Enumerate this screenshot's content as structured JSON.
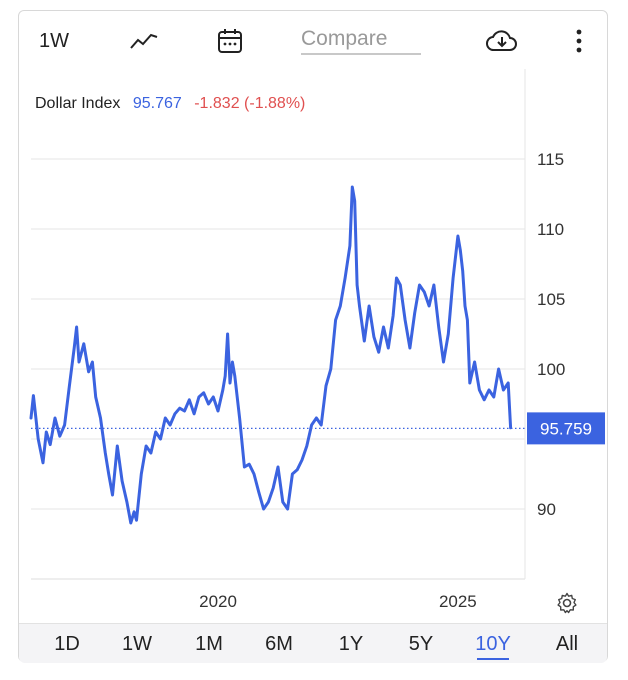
{
  "toolbar": {
    "interval_label": "1W",
    "trend_icon": "line-chart-icon",
    "calendar_icon": "calendar-icon",
    "compare_placeholder": "Compare",
    "download_icon": "cloud-download-icon",
    "more_icon": "more-vertical-icon"
  },
  "header": {
    "name": "Dollar Index",
    "value": "95.767",
    "change": "-1.832 (-1.88%)"
  },
  "price_tag": "95.759",
  "ranges": [
    "1D",
    "1W",
    "1M",
    "6M",
    "1Y",
    "5Y",
    "10Y",
    "All"
  ],
  "active_range": "10Y",
  "colors": {
    "line": "#3b63e0",
    "negative": "#e05050",
    "tag": "#3b63e0"
  },
  "chart_data": {
    "type": "line",
    "title": "",
    "xlabel": "",
    "ylabel": "",
    "x_ticks": [
      {
        "label": "2020",
        "x": 2020.0
      },
      {
        "label": "2025",
        "x": 2025.0
      }
    ],
    "y_ticks": [
      90,
      95,
      100,
      105,
      110,
      115
    ],
    "y_tick_labels": [
      "90",
      "100",
      "105",
      "110",
      "115"
    ],
    "xlim": [
      2016.1,
      2026.4
    ],
    "ylim": [
      85,
      117
    ],
    "reference_value": 95.759,
    "grid": true,
    "series": [
      {
        "name": "Dollar Index",
        "points": [
          [
            2016.1,
            96.5
          ],
          [
            2016.15,
            98.1
          ],
          [
            2016.25,
            95.0
          ],
          [
            2016.35,
            93.3
          ],
          [
            2016.42,
            95.5
          ],
          [
            2016.5,
            94.6
          ],
          [
            2016.6,
            96.5
          ],
          [
            2016.7,
            95.2
          ],
          [
            2016.8,
            96.0
          ],
          [
            2016.9,
            98.8
          ],
          [
            2017.0,
            101.5
          ],
          [
            2017.05,
            103.0
          ],
          [
            2017.1,
            100.5
          ],
          [
            2017.2,
            101.8
          ],
          [
            2017.3,
            99.8
          ],
          [
            2017.38,
            100.5
          ],
          [
            2017.45,
            98.0
          ],
          [
            2017.55,
            96.5
          ],
          [
            2017.65,
            94.0
          ],
          [
            2017.72,
            92.5
          ],
          [
            2017.8,
            91.0
          ],
          [
            2017.9,
            94.5
          ],
          [
            2018.0,
            92.0
          ],
          [
            2018.1,
            90.5
          ],
          [
            2018.18,
            89.0
          ],
          [
            2018.25,
            89.8
          ],
          [
            2018.3,
            89.2
          ],
          [
            2018.4,
            92.5
          ],
          [
            2018.5,
            94.5
          ],
          [
            2018.6,
            94.0
          ],
          [
            2018.7,
            95.5
          ],
          [
            2018.8,
            95.0
          ],
          [
            2018.9,
            96.5
          ],
          [
            2019.0,
            96.0
          ],
          [
            2019.1,
            96.8
          ],
          [
            2019.2,
            97.2
          ],
          [
            2019.3,
            97.0
          ],
          [
            2019.4,
            97.8
          ],
          [
            2019.5,
            96.8
          ],
          [
            2019.6,
            98.0
          ],
          [
            2019.7,
            98.3
          ],
          [
            2019.8,
            97.5
          ],
          [
            2019.9,
            98.0
          ],
          [
            2020.0,
            97.0
          ],
          [
            2020.1,
            98.5
          ],
          [
            2020.15,
            99.5
          ],
          [
            2020.2,
            102.5
          ],
          [
            2020.25,
            99.0
          ],
          [
            2020.3,
            100.5
          ],
          [
            2020.35,
            99.5
          ],
          [
            2020.45,
            96.5
          ],
          [
            2020.55,
            93.0
          ],
          [
            2020.65,
            93.2
          ],
          [
            2020.75,
            92.5
          ],
          [
            2020.85,
            91.2
          ],
          [
            2020.95,
            90.0
          ],
          [
            2021.05,
            90.5
          ],
          [
            2021.15,
            91.5
          ],
          [
            2021.25,
            93.0
          ],
          [
            2021.35,
            90.5
          ],
          [
            2021.45,
            90.0
          ],
          [
            2021.55,
            92.5
          ],
          [
            2021.65,
            92.8
          ],
          [
            2021.75,
            93.5
          ],
          [
            2021.85,
            94.5
          ],
          [
            2021.95,
            96.0
          ],
          [
            2022.05,
            96.5
          ],
          [
            2022.15,
            96.0
          ],
          [
            2022.25,
            98.8
          ],
          [
            2022.35,
            100.0
          ],
          [
            2022.45,
            103.5
          ],
          [
            2022.55,
            104.5
          ],
          [
            2022.65,
            106.5
          ],
          [
            2022.75,
            108.8
          ],
          [
            2022.8,
            113.0
          ],
          [
            2022.85,
            112.0
          ],
          [
            2022.9,
            106.0
          ],
          [
            2022.95,
            104.5
          ],
          [
            2023.05,
            102.0
          ],
          [
            2023.15,
            104.5
          ],
          [
            2023.25,
            102.3
          ],
          [
            2023.35,
            101.2
          ],
          [
            2023.45,
            103.0
          ],
          [
            2023.55,
            101.5
          ],
          [
            2023.65,
            103.8
          ],
          [
            2023.72,
            106.5
          ],
          [
            2023.8,
            106.0
          ],
          [
            2023.9,
            103.5
          ],
          [
            2024.0,
            101.5
          ],
          [
            2024.1,
            104.0
          ],
          [
            2024.2,
            106.0
          ],
          [
            2024.3,
            105.5
          ],
          [
            2024.4,
            104.5
          ],
          [
            2024.5,
            106.0
          ],
          [
            2024.6,
            103.0
          ],
          [
            2024.7,
            100.5
          ],
          [
            2024.8,
            102.5
          ],
          [
            2024.9,
            106.5
          ],
          [
            2025.0,
            109.5
          ],
          [
            2025.05,
            108.5
          ],
          [
            2025.1,
            107.0
          ],
          [
            2025.15,
            104.5
          ],
          [
            2025.2,
            103.5
          ],
          [
            2025.25,
            99.0
          ],
          [
            2025.35,
            100.5
          ],
          [
            2025.45,
            98.5
          ],
          [
            2025.55,
            97.8
          ],
          [
            2025.65,
            98.5
          ],
          [
            2025.75,
            98.0
          ],
          [
            2025.85,
            100.0
          ],
          [
            2025.95,
            98.5
          ],
          [
            2026.05,
            99.0
          ],
          [
            2026.1,
            95.8
          ]
        ]
      }
    ]
  }
}
